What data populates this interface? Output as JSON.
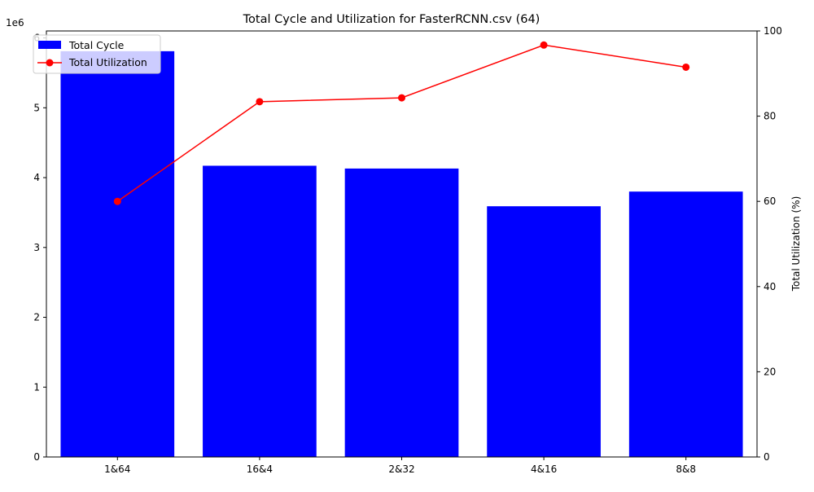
{
  "chart_data": {
    "type": "bar",
    "title": "Total Cycle and Utilization for FasterRCNN.csv (64)",
    "categories": [
      "1&64",
      "16&4",
      "2&32",
      "4&16",
      "8&8"
    ],
    "y_left": {
      "label": "",
      "offset_text": "1e6",
      "ylim": [
        0,
        6.1
      ],
      "ticks": [
        0,
        1,
        2,
        3,
        4,
        5,
        6
      ],
      "tick_labels": [
        "0",
        "1",
        "2",
        "3",
        "4",
        "5",
        "6"
      ]
    },
    "y_right": {
      "label": "Total Utilization (%)",
      "ylim": [
        0,
        100
      ],
      "ticks": [
        0,
        20,
        40,
        60,
        80,
        100
      ],
      "tick_labels": [
        "0",
        "20",
        "40",
        "60",
        "80",
        "100"
      ]
    },
    "series": [
      {
        "name": "Total Cycle",
        "kind": "bar",
        "axis": "left",
        "color": "#0000ff",
        "values": [
          5.81,
          4.17,
          4.13,
          3.59,
          3.8
        ]
      },
      {
        "name": "Total Utilization",
        "kind": "line",
        "axis": "right",
        "color": "#ff0000",
        "marker": "circle",
        "values": [
          60.0,
          83.4,
          84.3,
          96.7,
          91.5
        ]
      }
    ],
    "legend": {
      "placement": "top-left"
    },
    "grid": false
  }
}
